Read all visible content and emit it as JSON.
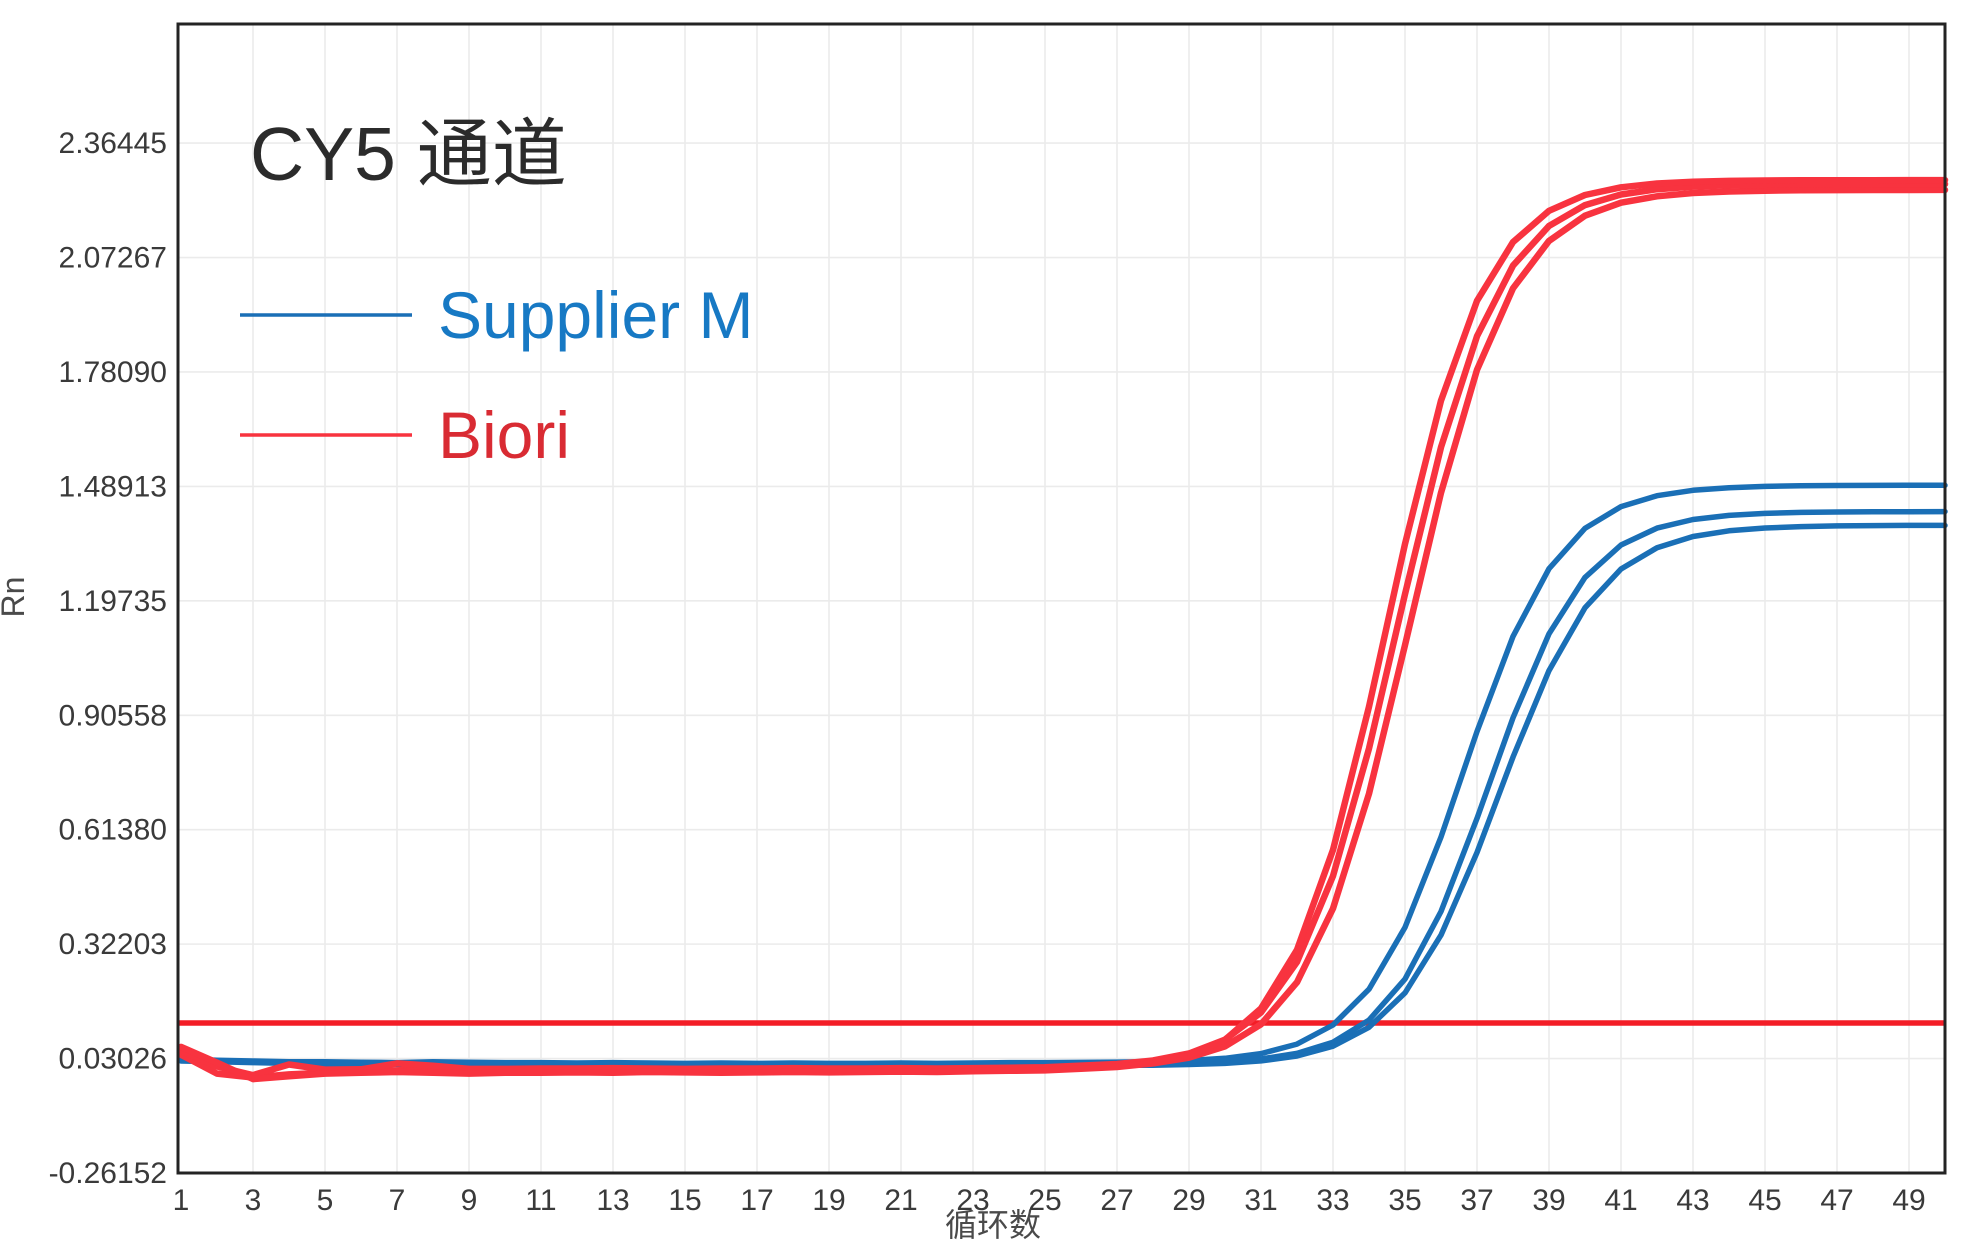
{
  "page": {
    "background": "#ffffff"
  },
  "chart": {
    "title": "CY5 通道",
    "y_axis_label": "Rn",
    "x_axis_label": "循环数",
    "legend": [
      {
        "label": "Supplier M",
        "text_color": "#1779c4",
        "line_color": "#1a6fb6"
      },
      {
        "label": "Biori",
        "text_color": "#d92b33",
        "line_color": "#f8333f"
      }
    ]
  },
  "chart_data": {
    "type": "line",
    "title": "CY5 通道",
    "xlabel": "循环数",
    "ylabel": "Rn",
    "grid": true,
    "legend_position": "top-left-inside",
    "xlim": [
      0.9,
      50.0
    ],
    "ylim": [
      -0.26152,
      2.668
    ],
    "x_tick_labels": [
      "1",
      "3",
      "5",
      "7",
      "9",
      "11",
      "13",
      "15",
      "17",
      "19",
      "21",
      "23",
      "25",
      "27",
      "29",
      "31",
      "33",
      "35",
      "37",
      "39",
      "41",
      "43",
      "45",
      "47",
      "49"
    ],
    "y_tick_values": [
      -0.26152,
      0.03026,
      0.32203,
      0.6138,
      0.90558,
      1.19735,
      1.48913,
      1.7809,
      2.07267,
      2.36445
    ],
    "y_tick_labels": [
      "-0.26152",
      "0.03026",
      "0.32203",
      "0.61380",
      "0.90558",
      "1.19735",
      "1.48913",
      "1.78090",
      "2.07267",
      "2.36445"
    ],
    "threshold_line": {
      "value": 0.121,
      "color": "#f31d26"
    },
    "x": [
      1,
      2,
      3,
      4,
      5,
      6,
      7,
      8,
      9,
      10,
      11,
      12,
      13,
      14,
      15,
      16,
      17,
      18,
      19,
      20,
      21,
      22,
      23,
      24,
      25,
      26,
      27,
      28,
      29,
      30,
      31,
      32,
      33,
      34,
      35,
      36,
      37,
      38,
      39,
      40,
      41,
      42,
      43,
      44,
      45,
      46,
      47,
      48,
      49,
      50
    ],
    "series": [
      {
        "group": "Supplier M",
        "replicate": 3,
        "color": "#1a6fb6",
        "values": [
          0.024,
          0.022,
          0.02,
          0.018,
          0.017,
          0.016,
          0.015,
          0.016,
          0.015,
          0.014,
          0.013,
          0.014,
          0.013,
          0.012,
          0.013,
          0.012,
          0.013,
          0.012,
          0.012,
          0.013,
          0.012,
          0.013,
          0.012,
          0.013,
          0.013,
          0.013,
          0.0131,
          0.0134,
          0.015,
          0.018,
          0.0243,
          0.0368,
          0.0617,
          0.1099,
          0.1978,
          0.3451,
          0.5556,
          0.7988,
          1.0194,
          1.1799,
          1.2784,
          1.3329,
          1.3615,
          1.3759,
          1.3831,
          1.3866,
          1.3883,
          1.3892,
          1.3896,
          1.3898
        ]
      },
      {
        "group": "Supplier M",
        "replicate": 2,
        "color": "#1a6fb6",
        "values": [
          0.026,
          0.024,
          0.022,
          0.02,
          0.019,
          0.018,
          0.017,
          0.018,
          0.017,
          0.016,
          0.016,
          0.016,
          0.015,
          0.016,
          0.015,
          0.014,
          0.015,
          0.014,
          0.015,
          0.014,
          0.015,
          0.014,
          0.015,
          0.016,
          0.016,
          0.016,
          0.0164,
          0.0174,
          0.019,
          0.0223,
          0.0291,
          0.0433,
          0.072,
          0.1284,
          0.2329,
          0.4053,
          0.6426,
          0.8992,
          1.1132,
          1.257,
          1.3396,
          1.3829,
          1.4046,
          1.4152,
          1.4203,
          1.4227,
          1.4239,
          1.4245,
          1.4247,
          1.4249
        ]
      },
      {
        "group": "Supplier M",
        "replicate": 1,
        "color": "#1a6fb6",
        "values": [
          0.03,
          0.026,
          0.024,
          0.022,
          0.022,
          0.021,
          0.02,
          0.022,
          0.021,
          0.02,
          0.02,
          0.019,
          0.02,
          0.019,
          0.018,
          0.019,
          0.018,
          0.019,
          0.018,
          0.018,
          0.019,
          0.018,
          0.019,
          0.02,
          0.02,
          0.0206,
          0.0212,
          0.0225,
          0.0253,
          0.031,
          0.0429,
          0.0672,
          0.1158,
          0.2072,
          0.3647,
          0.5952,
          0.8642,
          1.1067,
          1.2792,
          1.3823,
          1.4377,
          1.4655,
          1.4793,
          1.4859,
          1.4891,
          1.4906,
          1.4913,
          1.4917,
          1.4918,
          1.492
        ]
      },
      {
        "group": "Biori",
        "replicate": 2,
        "color": "#f8333f",
        "values": [
          0.04,
          -0.008,
          -0.018,
          -0.01,
          -0.006,
          -0.004,
          0.0,
          0.004,
          -0.002,
          -0.004,
          0.0,
          -0.002,
          0.0,
          0.001,
          0.0,
          -0.001,
          0.0,
          0.001,
          0.0,
          0.0,
          0.001,
          0.002,
          0.001,
          0.002,
          0.003,
          0.006,
          0.0109,
          0.018,
          0.0324,
          0.0612,
          0.1176,
          0.2247,
          0.4129,
          0.7057,
          1.0846,
          1.4728,
          1.7864,
          1.9943,
          2.115,
          2.1793,
          2.2124,
          2.2289,
          2.2371,
          2.2411,
          2.2431,
          2.2441,
          2.2446,
          2.2448,
          2.2449,
          2.245
        ]
      },
      {
        "group": "Biori",
        "replicate": 1,
        "color": "#f8333f",
        "values": [
          0.05,
          0.01,
          -0.012,
          0.015,
          0.002,
          0.003,
          0.018,
          0.012,
          0.004,
          0.004,
          0.005,
          0.005,
          0.006,
          0.005,
          0.004,
          0.005,
          0.005,
          0.006,
          0.005,
          0.005,
          0.006,
          0.005,
          0.006,
          0.007,
          0.008,
          0.0122,
          0.0165,
          0.0254,
          0.0432,
          0.0786,
          0.1478,
          0.2765,
          0.4957,
          0.8209,
          1.2144,
          1.5888,
          1.8722,
          2.052,
          2.1532,
          2.2064,
          2.2334,
          2.2469,
          2.2536,
          2.2568,
          2.2584,
          2.2592,
          2.2596,
          2.2598,
          2.2599,
          2.26
        ]
      },
      {
        "group": "Biori",
        "replicate": 3,
        "color": "#f8333f",
        "values": [
          0.06,
          0.02,
          -0.022,
          -0.015,
          -0.008,
          -0.006,
          -0.004,
          -0.006,
          -0.008,
          -0.006,
          -0.006,
          -0.005,
          -0.006,
          -0.004,
          -0.005,
          -0.006,
          -0.005,
          -0.004,
          -0.005,
          -0.004,
          -0.003,
          -0.004,
          -0.002,
          -0.001,
          0.0,
          0.0042,
          0.0087,
          0.0183,
          0.038,
          0.0782,
          0.158,
          0.3077,
          0.5622,
          0.9274,
          1.3426,
          1.7078,
          1.9623,
          2.112,
          2.1918,
          2.232,
          2.2517,
          2.2613,
          2.2658,
          2.268,
          2.269,
          2.2695,
          2.2698,
          2.2699,
          2.27,
          2.27
        ]
      }
    ]
  }
}
